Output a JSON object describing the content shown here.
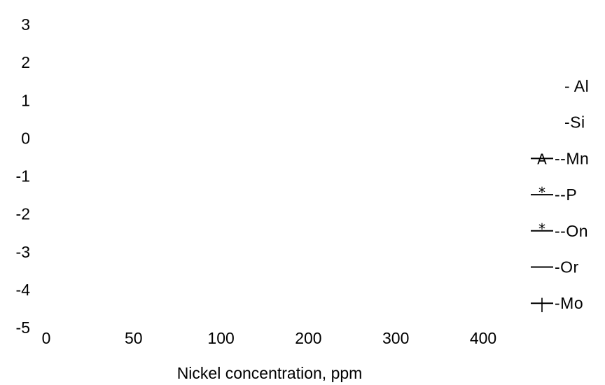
{
  "chart_data": {
    "type": "line",
    "title": "",
    "xlabel": "Nickel concentration, ppm",
    "ylabel": "",
    "categories": [
      "0",
      "50",
      "100",
      "200",
      "300",
      "400"
    ],
    "y_ticks": [
      "3",
      "2",
      "1",
      "0",
      "-1",
      "-2",
      "-3",
      "-4",
      "-5"
    ],
    "ylim": [
      -5,
      3
    ],
    "grid": false,
    "legend_position": "right",
    "series": [
      {
        "legend_text": "- Al",
        "marker": "",
        "line": false
      },
      {
        "legend_text": "-Si",
        "marker": "",
        "line": false
      },
      {
        "legend_text": "--Mn",
        "marker": "A",
        "line": true
      },
      {
        "legend_text": "--P",
        "marker": "*",
        "line": true
      },
      {
        "legend_text": "--On",
        "marker": "*",
        "line": true
      },
      {
        "legend_text": "-Or",
        "marker": "",
        "line": true
      },
      {
        "legend_text": "-Mo",
        "marker": "|",
        "line": true
      }
    ]
  }
}
